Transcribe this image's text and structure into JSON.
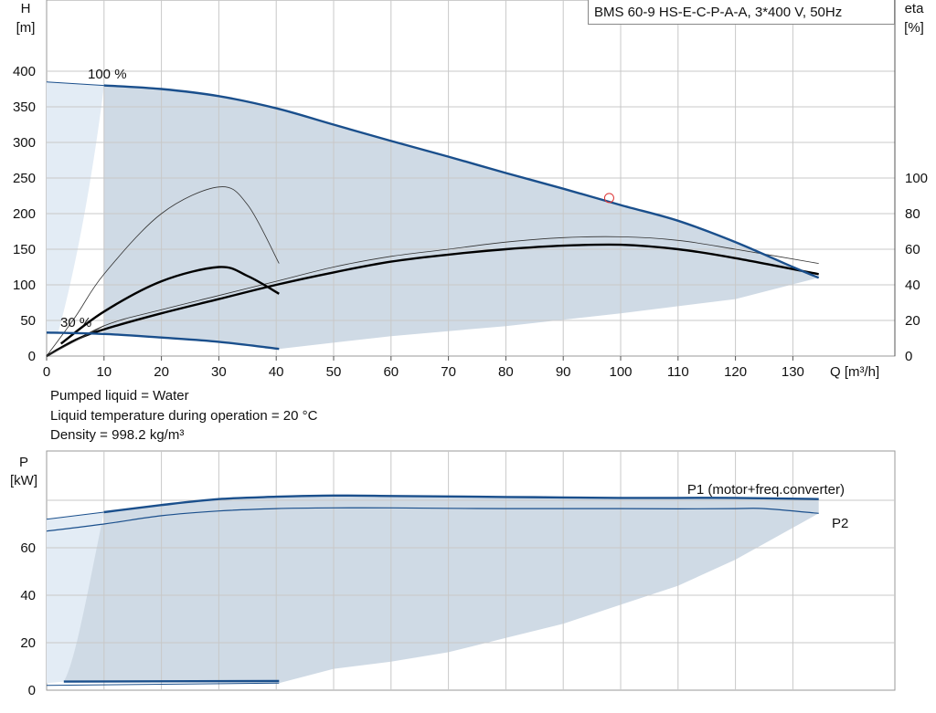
{
  "header": {
    "model": "BMS 60-9 HS-E-C-P-A-A, 3*400 V, 50Hz"
  },
  "notes": [
    "Pumped liquid = Water",
    "Liquid temperature during operation = 20 °C",
    "Density = 998.2 kg/m³"
  ],
  "colors": {
    "curve": "#1a4f8c",
    "fill": "#cfdae5",
    "fill_light": "#e3ecf5",
    "eff": "#000000",
    "duty_point": "#dd3333",
    "grid": "#c8c8c8"
  },
  "chart_data": [
    {
      "type": "line",
      "title": "",
      "xlabel": "Q [m³/h]",
      "ylabel": "H\n[m]",
      "y2label": "eta\n[%]",
      "xlim": [
        0,
        140
      ],
      "ylim": [
        0,
        400
      ],
      "y2lim": [
        0,
        200
      ],
      "x_ticks": [
        0,
        10,
        20,
        30,
        40,
        50,
        60,
        70,
        80,
        90,
        100,
        110,
        120,
        130
      ],
      "y_ticks": [
        0,
        50,
        100,
        150,
        200,
        250,
        300,
        350,
        400
      ],
      "y2_ticks": [
        0,
        20,
        40,
        60,
        80,
        100
      ],
      "grid": true,
      "labels": {
        "max": "100 %",
        "min": "30 %"
      },
      "series": [
        {
          "role": "head_max",
          "x": [
            10,
            20,
            30,
            40,
            50,
            60,
            70,
            80,
            90,
            100,
            110,
            120,
            130,
            134.5
          ],
          "y": [
            380,
            375,
            365,
            348,
            325,
            302,
            280,
            257,
            235,
            212,
            190,
            160,
            125,
            110
          ]
        },
        {
          "role": "head_low_left",
          "x": [
            0,
            10
          ],
          "y": [
            385,
            380
          ]
        },
        {
          "role": "head_min",
          "x": [
            0,
            10,
            20,
            30,
            40.5
          ],
          "y": [
            33,
            31,
            26,
            20,
            10
          ]
        },
        {
          "role": "eff_max",
          "x": [
            0,
            5,
            10,
            20,
            30,
            40,
            50,
            60,
            70,
            80,
            90,
            100,
            110,
            120,
            134.5
          ],
          "y": [
            0,
            9,
            15,
            24,
            32,
            40,
            47,
            53,
            57,
            60,
            62,
            62.5,
            60,
            55,
            46
          ]
        },
        {
          "role": "eff_min",
          "x": [
            2.5,
            10,
            20,
            30,
            35,
            40.5
          ],
          "y": [
            7,
            25,
            42,
            50,
            45,
            35
          ]
        },
        {
          "role": "eff_max_thin",
          "x": [
            0,
            10,
            20,
            30,
            40,
            50,
            60,
            70,
            80,
            90,
            100,
            110,
            120,
            134.5
          ],
          "y": [
            0,
            17,
            26,
            34,
            42,
            50,
            56,
            60,
            64,
            66.5,
            67,
            65,
            60,
            52
          ]
        },
        {
          "role": "eff_min_thin",
          "x": [
            0,
            5,
            10,
            20,
            30,
            35,
            40.5
          ],
          "y": [
            0,
            22,
            46,
            80,
            95,
            85,
            52
          ]
        }
      ],
      "duty_point": {
        "x": 98,
        "y": 222
      }
    },
    {
      "type": "line",
      "xlabel": "",
      "ylabel": "P\n[kW]",
      "xlim": [
        0,
        140
      ],
      "ylim": [
        0,
        80
      ],
      "y_ticks": [
        0,
        20,
        40,
        60
      ],
      "grid": true,
      "series": [
        {
          "name": "P1 (motor+freq.converter)",
          "x": [
            10,
            20,
            30,
            40,
            50,
            60,
            70,
            80,
            90,
            100,
            110,
            120,
            134.5
          ],
          "y": [
            75,
            78,
            80.5,
            81.5,
            82,
            81.8,
            81.6,
            81.4,
            81.2,
            81,
            81,
            81,
            80.5
          ]
        },
        {
          "name": "P2",
          "x": [
            0,
            10,
            20,
            30,
            40,
            50,
            60,
            70,
            80,
            90,
            100,
            110,
            120,
            125,
            134.5
          ],
          "y": [
            67,
            70,
            73.5,
            75.5,
            76.5,
            76.8,
            76.8,
            76.6,
            76.5,
            76.5,
            76.5,
            76.4,
            76.5,
            76.5,
            74.5
          ]
        },
        {
          "role": "P1_low_left",
          "x": [
            0,
            10
          ],
          "y": [
            72,
            75
          ]
        },
        {
          "role": "P1_min",
          "x": [
            3,
            40.5
          ],
          "y": [
            3.6,
            3.9
          ]
        },
        {
          "role": "P2_min",
          "x": [
            0,
            40.5
          ],
          "y": [
            2,
            3
          ]
        }
      ]
    }
  ]
}
